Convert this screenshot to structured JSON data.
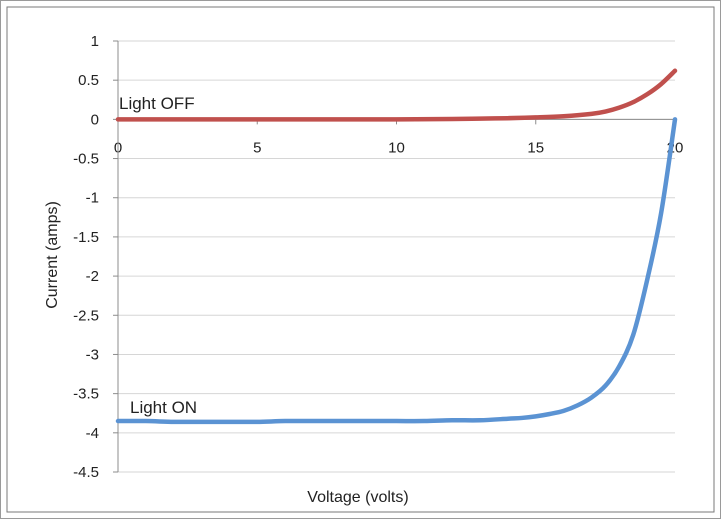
{
  "chart_data": {
    "type": "line",
    "title": "",
    "xlabel": "Voltage (volts)",
    "ylabel": "Current (amps)",
    "xlim": [
      0,
      20
    ],
    "ylim": [
      -4.5,
      1
    ],
    "x_ticks": [
      "0",
      "5",
      "10",
      "15",
      "20"
    ],
    "y_ticks": [
      "1",
      "0.5",
      "0",
      "-0.5",
      "-1",
      "-1.5",
      "-2",
      "-2.5",
      "-3",
      "-3.5",
      "-4",
      "-4.5"
    ],
    "grid": "horizontal",
    "legend": "none",
    "series": [
      {
        "name": "Light OFF",
        "color": "#c0504d",
        "x": [
          0,
          2,
          4,
          6,
          8,
          10,
          12,
          13,
          14,
          15,
          16,
          17,
          17.5,
          18,
          18.5,
          19,
          19.5,
          20
        ],
        "y": [
          0,
          0,
          0,
          0,
          0,
          0,
          0.005,
          0.01,
          0.015,
          0.025,
          0.04,
          0.07,
          0.1,
          0.15,
          0.22,
          0.32,
          0.45,
          0.62
        ]
      },
      {
        "name": "Light ON",
        "color": "#5b93d3",
        "x": [
          0,
          1,
          2,
          3,
          4,
          5,
          6,
          7,
          8,
          9,
          10,
          11,
          12,
          13,
          14,
          14.5,
          15,
          15.5,
          16,
          16.5,
          17,
          17.5,
          18,
          18.5,
          19,
          19.5,
          20
        ],
        "y": [
          -3.85,
          -3.85,
          -3.86,
          -3.86,
          -3.86,
          -3.86,
          -3.85,
          -3.85,
          -3.85,
          -3.85,
          -3.85,
          -3.85,
          -3.84,
          -3.84,
          -3.82,
          -3.81,
          -3.79,
          -3.76,
          -3.72,
          -3.65,
          -3.55,
          -3.4,
          -3.15,
          -2.75,
          -2.05,
          -1.2,
          0
        ]
      }
    ]
  }
}
